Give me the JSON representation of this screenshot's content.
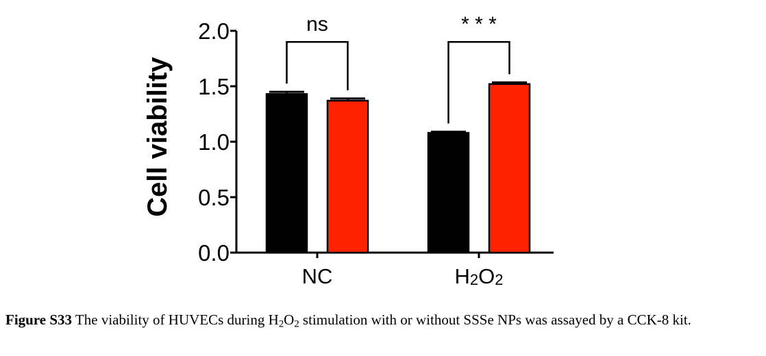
{
  "chart_data": {
    "type": "bar",
    "categories": [
      "NC",
      "H2O2"
    ],
    "category_tick_labels": [
      {
        "base": "NC",
        "sub1": "",
        "mid": "",
        "sub2": ""
      },
      {
        "base": "H",
        "sub1": "2",
        "mid": "O",
        "sub2": "2"
      }
    ],
    "series": [
      {
        "values": [
          1.43,
          1.08
        ],
        "errors": [
          0.02,
          0.01
        ],
        "color": "#000000"
      },
      {
        "values": [
          1.37,
          1.52
        ],
        "errors": [
          0.02,
          0.015
        ],
        "color": "#ff2200"
      }
    ],
    "ylabel": "Cell viability",
    "ylim": [
      0,
      2.0
    ],
    "yticks": [
      0.0,
      0.5,
      1.0,
      1.5,
      2.0
    ],
    "ytick_labels": [
      "0.0",
      "0.5",
      "1.0",
      "1.5",
      "2.0"
    ],
    "significance": [
      {
        "category": "NC",
        "label": "ns",
        "bracket_y": 1.9
      },
      {
        "category": "H2O2",
        "label": "* * *",
        "bracket_y": 1.9
      }
    ],
    "grid": false
  },
  "caption": {
    "label": "Figure S33",
    "text_before": " The viability of HUVECs during H",
    "sub1": "2",
    "mid": "O",
    "sub2": "2",
    "text_after": " stimulation with or without SSSe NPs was assayed by a CCK-8 kit."
  }
}
